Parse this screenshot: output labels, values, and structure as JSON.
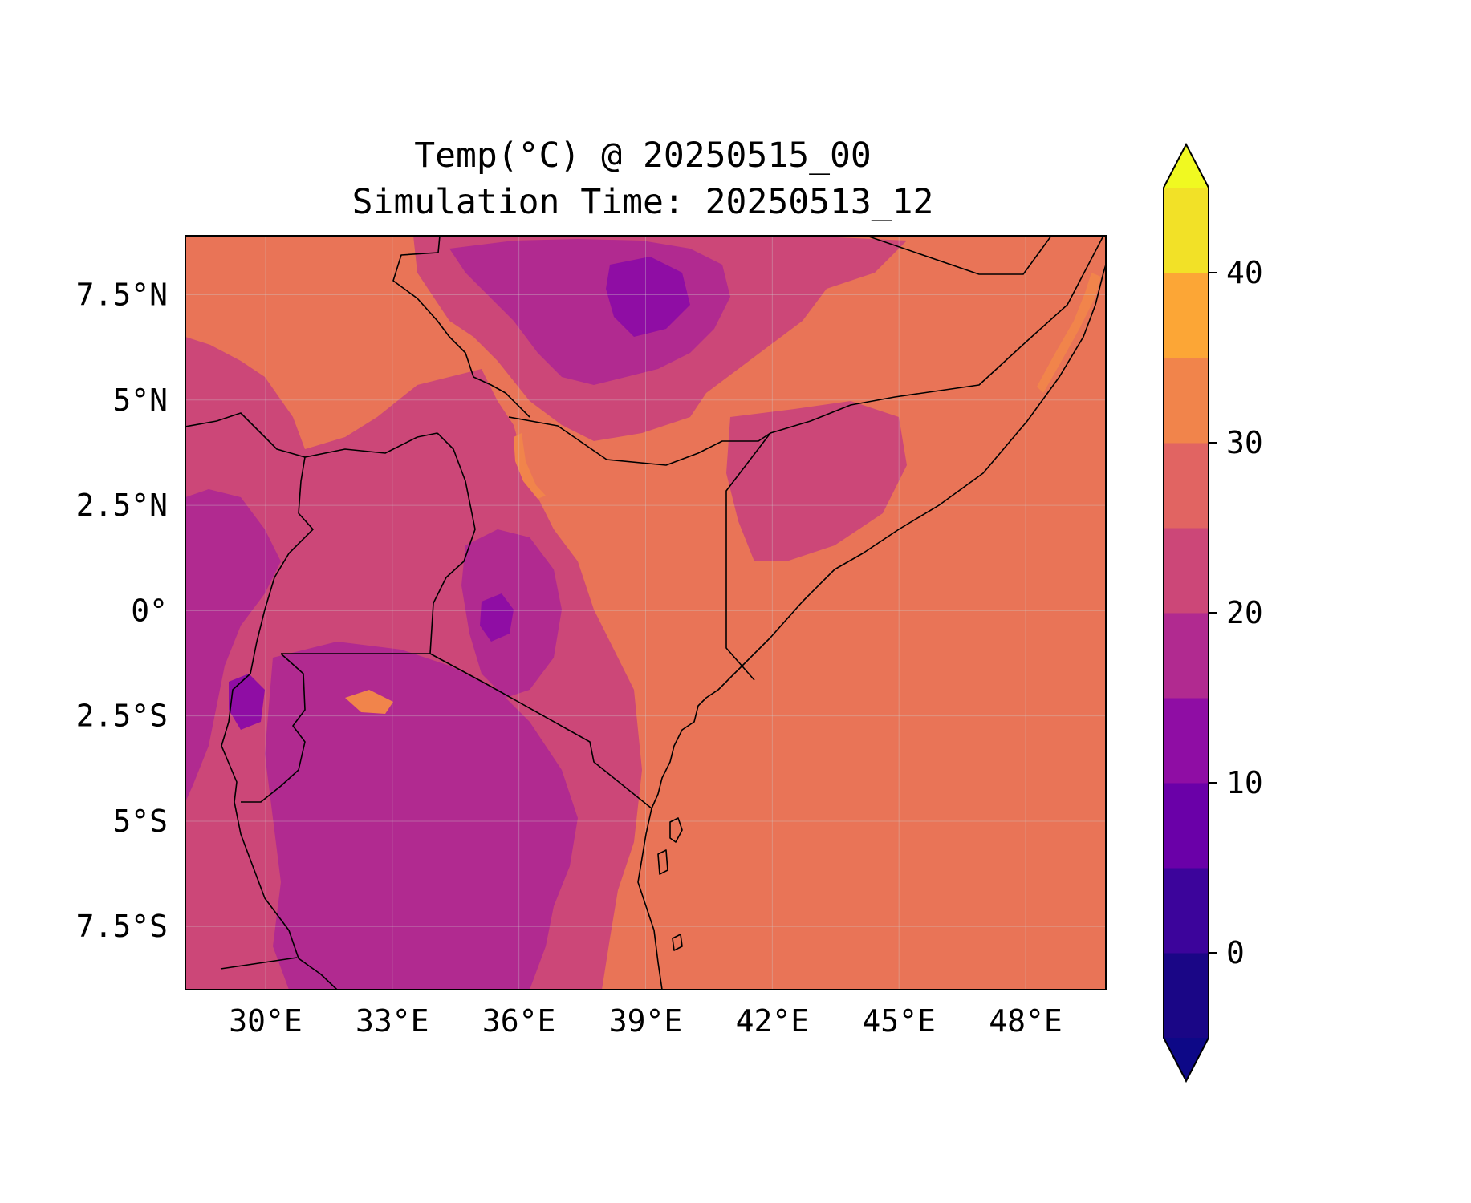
{
  "title": {
    "line1": "Temp(°C) @ 20250515_00",
    "line2": "Simulation Time: 20250513_12"
  },
  "map": {
    "lon_range": [
      28.1,
      49.9
    ],
    "lat_range": [
      -9.0,
      8.9
    ],
    "lon_ticks": [
      {
        "value": 30,
        "label": "30°E"
      },
      {
        "value": 33,
        "label": "33°E"
      },
      {
        "value": 36,
        "label": "36°E"
      },
      {
        "value": 39,
        "label": "39°E"
      },
      {
        "value": 42,
        "label": "42°E"
      },
      {
        "value": 45,
        "label": "45°E"
      },
      {
        "value": 48,
        "label": "48°E"
      }
    ],
    "lat_ticks": [
      {
        "value": 7.5,
        "label": "7.5°N"
      },
      {
        "value": 5,
        "label": "5°N"
      },
      {
        "value": 2.5,
        "label": "2.5°N"
      },
      {
        "value": 0,
        "label": "0°"
      },
      {
        "value": -2.5,
        "label": "2.5°S"
      },
      {
        "value": -5,
        "label": "5°S"
      },
      {
        "value": -7.5,
        "label": "7.5°S"
      }
    ],
    "background_color": "#e97457"
  },
  "colorbar": {
    "colormap": "plasma",
    "levels": [
      -5,
      0,
      5,
      10,
      15,
      20,
      25,
      30,
      35,
      40,
      45
    ],
    "colors": [
      "#1a0686",
      "#3c049b",
      "#6a00a8",
      "#8f0da4",
      "#b12a90",
      "#cc4778",
      "#e16462",
      "#f1844b",
      "#fca636",
      "#f2e127"
    ],
    "under_color": "#0d0887",
    "over_color": "#f0f921",
    "extend": "both",
    "ticks": [
      {
        "value": 0,
        "label": "0"
      },
      {
        "value": 10,
        "label": "10"
      },
      {
        "value": 20,
        "label": "20"
      },
      {
        "value": 30,
        "label": "30"
      },
      {
        "value": 40,
        "label": "40"
      }
    ]
  }
}
